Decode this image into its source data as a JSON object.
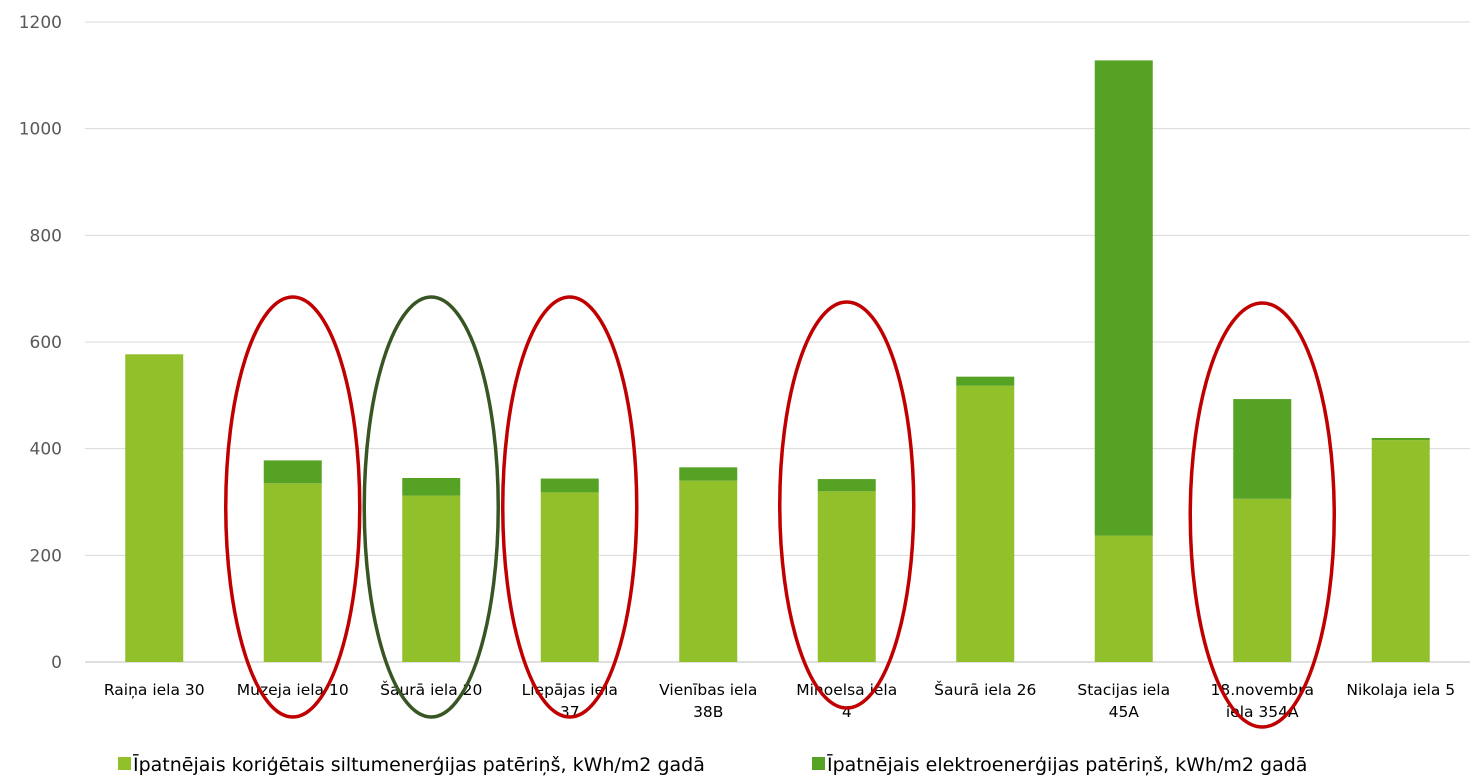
{
  "chart_data": {
    "type": "bar",
    "stacked": true,
    "categories": [
      [
        "Raiņa iela 30"
      ],
      [
        "Muzeja iela 10"
      ],
      [
        "Šaurā iela 20"
      ],
      [
        "Liepājas iela",
        "37"
      ],
      [
        "Vienības iela",
        "38B"
      ],
      [
        "Mihoelsa iela",
        "4"
      ],
      [
        "Šaurā iela 26"
      ],
      [
        "Stacijas iela",
        "45A"
      ],
      [
        "18.novembra",
        "iela 354A"
      ],
      [
        "Nikolaja iela 5"
      ]
    ],
    "series": [
      {
        "name": "Īpatnējais koriģētais siltumenerģijas patēriņš, kWh/m2 gadā",
        "color": "#92c02b",
        "values": [
          577,
          335,
          312,
          318,
          340,
          320,
          518,
          237,
          306,
          416
        ]
      },
      {
        "name": "Īpatnējais elektroenerģijas patēriņš, kWh/m2 gadā",
        "color": "#55a225",
        "values": [
          0,
          43,
          33,
          26,
          25,
          23,
          17,
          891,
          187,
          4
        ]
      }
    ],
    "y_ticks": [
      "0",
      "200",
      "400",
      "600",
      "800",
      "1000",
      "1200"
    ],
    "ylim": [
      0,
      1200
    ],
    "grid": true,
    "legend_position": "bottom",
    "annotations": [
      {
        "type": "ellipse",
        "category_index": 1,
        "color": "#c00000"
      },
      {
        "type": "ellipse",
        "category_index": 2,
        "color": "#375623"
      },
      {
        "type": "ellipse",
        "category_index": 3,
        "color": "#c00000"
      },
      {
        "type": "ellipse",
        "category_index": 5,
        "color": "#c00000"
      },
      {
        "type": "ellipse",
        "category_index": 8,
        "color": "#c00000"
      }
    ]
  }
}
